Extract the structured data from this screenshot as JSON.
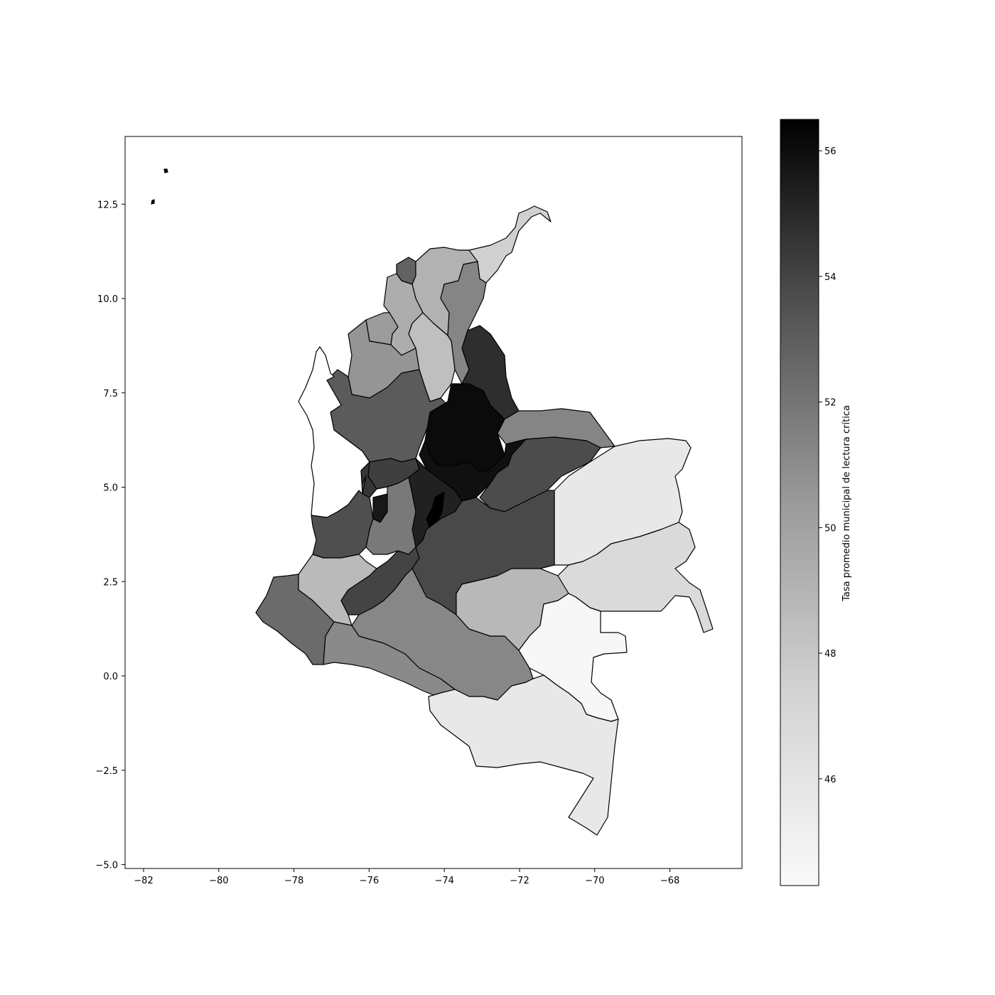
{
  "chart_data": {
    "type": "choropleth",
    "x_ticks": [
      "−82",
      "−80",
      "−78",
      "−76",
      "−74",
      "−72",
      "−70",
      "−68"
    ],
    "x_tick_values": [
      -82,
      -80,
      -78,
      -76,
      -74,
      -72,
      -70,
      -68
    ],
    "y_ticks": [
      "12.5",
      "10.0",
      "7.5",
      "5.0",
      "2.5",
      "0.0",
      "−2.5",
      "−5.0"
    ],
    "y_tick_values": [
      12.5,
      10.0,
      7.5,
      5.0,
      2.5,
      0.0,
      -2.5,
      -5.0
    ],
    "xlim": [
      -82.5,
      -66.1
    ],
    "ylim": [
      -5.1,
      14.3
    ],
    "colorbar": {
      "label": "Tasa promedio municipal de lectura crítica",
      "ticks": [
        "46",
        "48",
        "50",
        "52",
        "54",
        "56"
      ],
      "tick_values": [
        46,
        48,
        50,
        52,
        54,
        56
      ],
      "range": [
        44.3,
        56.5
      ],
      "colormap": "Greys"
    },
    "regions": [
      {
        "id": "la-guajira",
        "value": 47.5
      },
      {
        "id": "atlantico",
        "value": 52.8
      },
      {
        "id": "magdalena",
        "value": 49.1
      },
      {
        "id": "cesar",
        "value": 51.3
      },
      {
        "id": "bolivar-north",
        "value": 49.4
      },
      {
        "id": "sucre",
        "value": 50.3
      },
      {
        "id": "bolivar-south",
        "value": 48.4
      },
      {
        "id": "cordoba",
        "value": 50.6
      },
      {
        "id": "norte-de-santander",
        "value": 54.8
      },
      {
        "id": "antioquia",
        "value": 53.1
      },
      {
        "id": "santander",
        "value": 56.1
      },
      {
        "id": "arauca",
        "value": 51.3
      },
      {
        "id": "boyaca",
        "value": 55.9
      },
      {
        "id": "casanare",
        "value": 53.7
      },
      {
        "id": "vichada",
        "value": 45.7
      },
      {
        "id": "caldas",
        "value": 54.2
      },
      {
        "id": "risaralda",
        "value": 54.5
      },
      {
        "id": "cundinamarca",
        "value": 55.3
      },
      {
        "id": "bogota",
        "value": 56.5
      },
      {
        "id": "quindio",
        "value": 55.6
      },
      {
        "id": "tolima",
        "value": 51.8
      },
      {
        "id": "meta",
        "value": 53.8
      },
      {
        "id": "valle-del-cauca",
        "value": 53.6
      },
      {
        "id": "cauca",
        "value": 48.7
      },
      {
        "id": "huila",
        "value": 54.0
      },
      {
        "id": "narino",
        "value": 52.4
      },
      {
        "id": "putumayo",
        "value": 51.1
      },
      {
        "id": "caqueta",
        "value": 51.2
      },
      {
        "id": "guaviare",
        "value": 48.8
      },
      {
        "id": "guainia",
        "value": 46.8
      },
      {
        "id": "vaupes",
        "value": 44.5
      },
      {
        "id": "amazonas",
        "value": 45.7
      },
      {
        "id": "choco",
        "value": 44.3
      },
      {
        "id": "san-andres",
        "value": 56.5
      }
    ]
  }
}
